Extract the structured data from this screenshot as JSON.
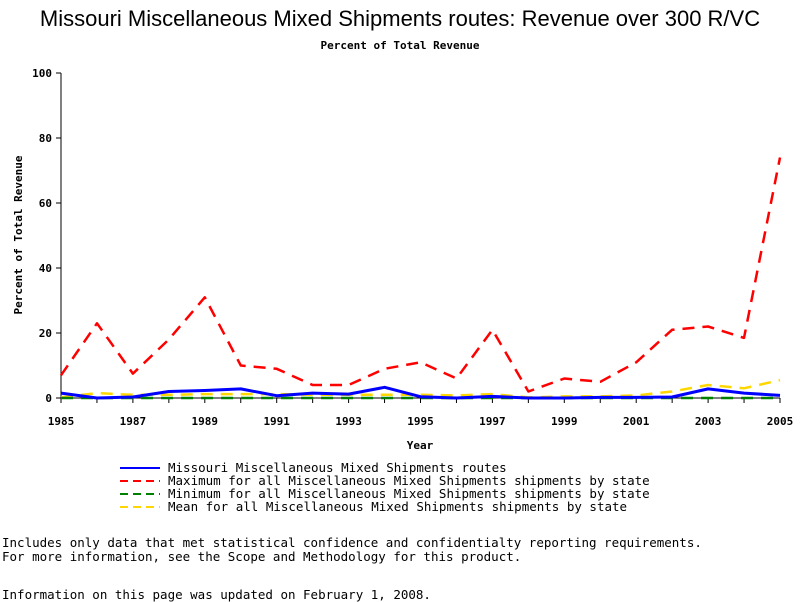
{
  "page": {
    "title": "Missouri Miscellaneous Mixed Shipments routes: Revenue over 300 R/VC",
    "subtitle": "Percent of Total Revenue",
    "notes": [
      "Includes only data that met statistical confidence and confidentialty reporting requirements.",
      "For more information, see the Scope and Methodology for this product."
    ],
    "updated": "Information on this page was updated on February 1, 2008."
  },
  "chart_data": {
    "type": "line",
    "title": "Missouri Miscellaneous Mixed Shipments routes: Revenue over 300 R/VC",
    "subtitle": "Percent of Total Revenue",
    "xlabel": "Year",
    "ylabel": "Percent of Total Revenue",
    "xlim": [
      1985,
      2005
    ],
    "ylim": [
      0,
      100
    ],
    "x_ticks": [
      "1985",
      "1987",
      "1989",
      "1991",
      "1993",
      "1995",
      "1997",
      "1999",
      "2001",
      "2003",
      "2005"
    ],
    "y_ticks": [
      "0",
      "20",
      "40",
      "60",
      "80",
      "100"
    ],
    "grid": false,
    "legend_position": "bottom",
    "x": [
      1985,
      1986,
      1987,
      1988,
      1989,
      1990,
      1991,
      1992,
      1993,
      1994,
      1995,
      1996,
      1997,
      1998,
      1999,
      2000,
      2001,
      2002,
      2003,
      2004,
      2005
    ],
    "series": [
      {
        "name": "Missouri Miscellaneous Mixed Shipments routes",
        "color": "#0000ff",
        "dash": "solid",
        "values": [
          1.5,
          0.0,
          0.3,
          2.0,
          2.3,
          2.8,
          0.7,
          1.5,
          1.2,
          3.3,
          0.4,
          0.0,
          0.5,
          0.0,
          0.0,
          0.2,
          0.2,
          0.3,
          2.8,
          1.5,
          0.8
        ]
      },
      {
        "name": "Maximum for all Miscellaneous Mixed Shipments shipments by state",
        "color": "#ff0000",
        "dash": "dashed",
        "values": [
          7,
          23,
          7.5,
          18,
          31,
          10,
          9,
          4,
          4,
          9,
          11,
          6,
          21,
          2,
          6,
          5,
          11,
          21,
          22,
          18.5,
          74
        ]
      },
      {
        "name": "Minimum for all Miscellaneous Mixed Shipments shipments by state",
        "color": "#008000",
        "dash": "dashed",
        "values": [
          0,
          0,
          0,
          0,
          0,
          0,
          0,
          0,
          0,
          0,
          0,
          0,
          0,
          0,
          0,
          0,
          0,
          0,
          0,
          0,
          0
        ]
      },
      {
        "name": "Mean for all Miscellaneous Mixed Shipments shipments by state",
        "color": "#ffd700",
        "dash": "dashed",
        "values": [
          0.2,
          1.5,
          1,
          1,
          1.2,
          1.2,
          1.2,
          1,
          1,
          1,
          1,
          0.8,
          1.2,
          0.2,
          0.5,
          0.5,
          0.8,
          2.0,
          4,
          3.0,
          5.5
        ]
      }
    ]
  }
}
